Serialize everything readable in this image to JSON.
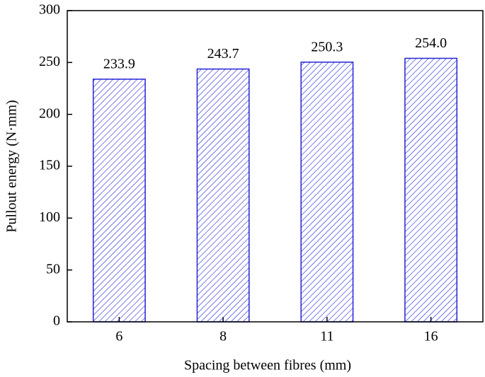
{
  "chart_data": {
    "type": "bar",
    "x_label": "Spacing between fibres (mm)",
    "y_label": "Pullout energy (N·mm)",
    "categories": [
      "6",
      "8",
      "11",
      "16"
    ],
    "values": [
      233.9,
      243.7,
      250.3,
      254.0
    ],
    "value_labels": [
      "233.9",
      "243.7",
      "250.3",
      "254.0"
    ],
    "color": "#2323d6",
    "ylim": [
      0,
      300
    ],
    "yticks": [
      0,
      50,
      100,
      150,
      200,
      250,
      300
    ]
  }
}
